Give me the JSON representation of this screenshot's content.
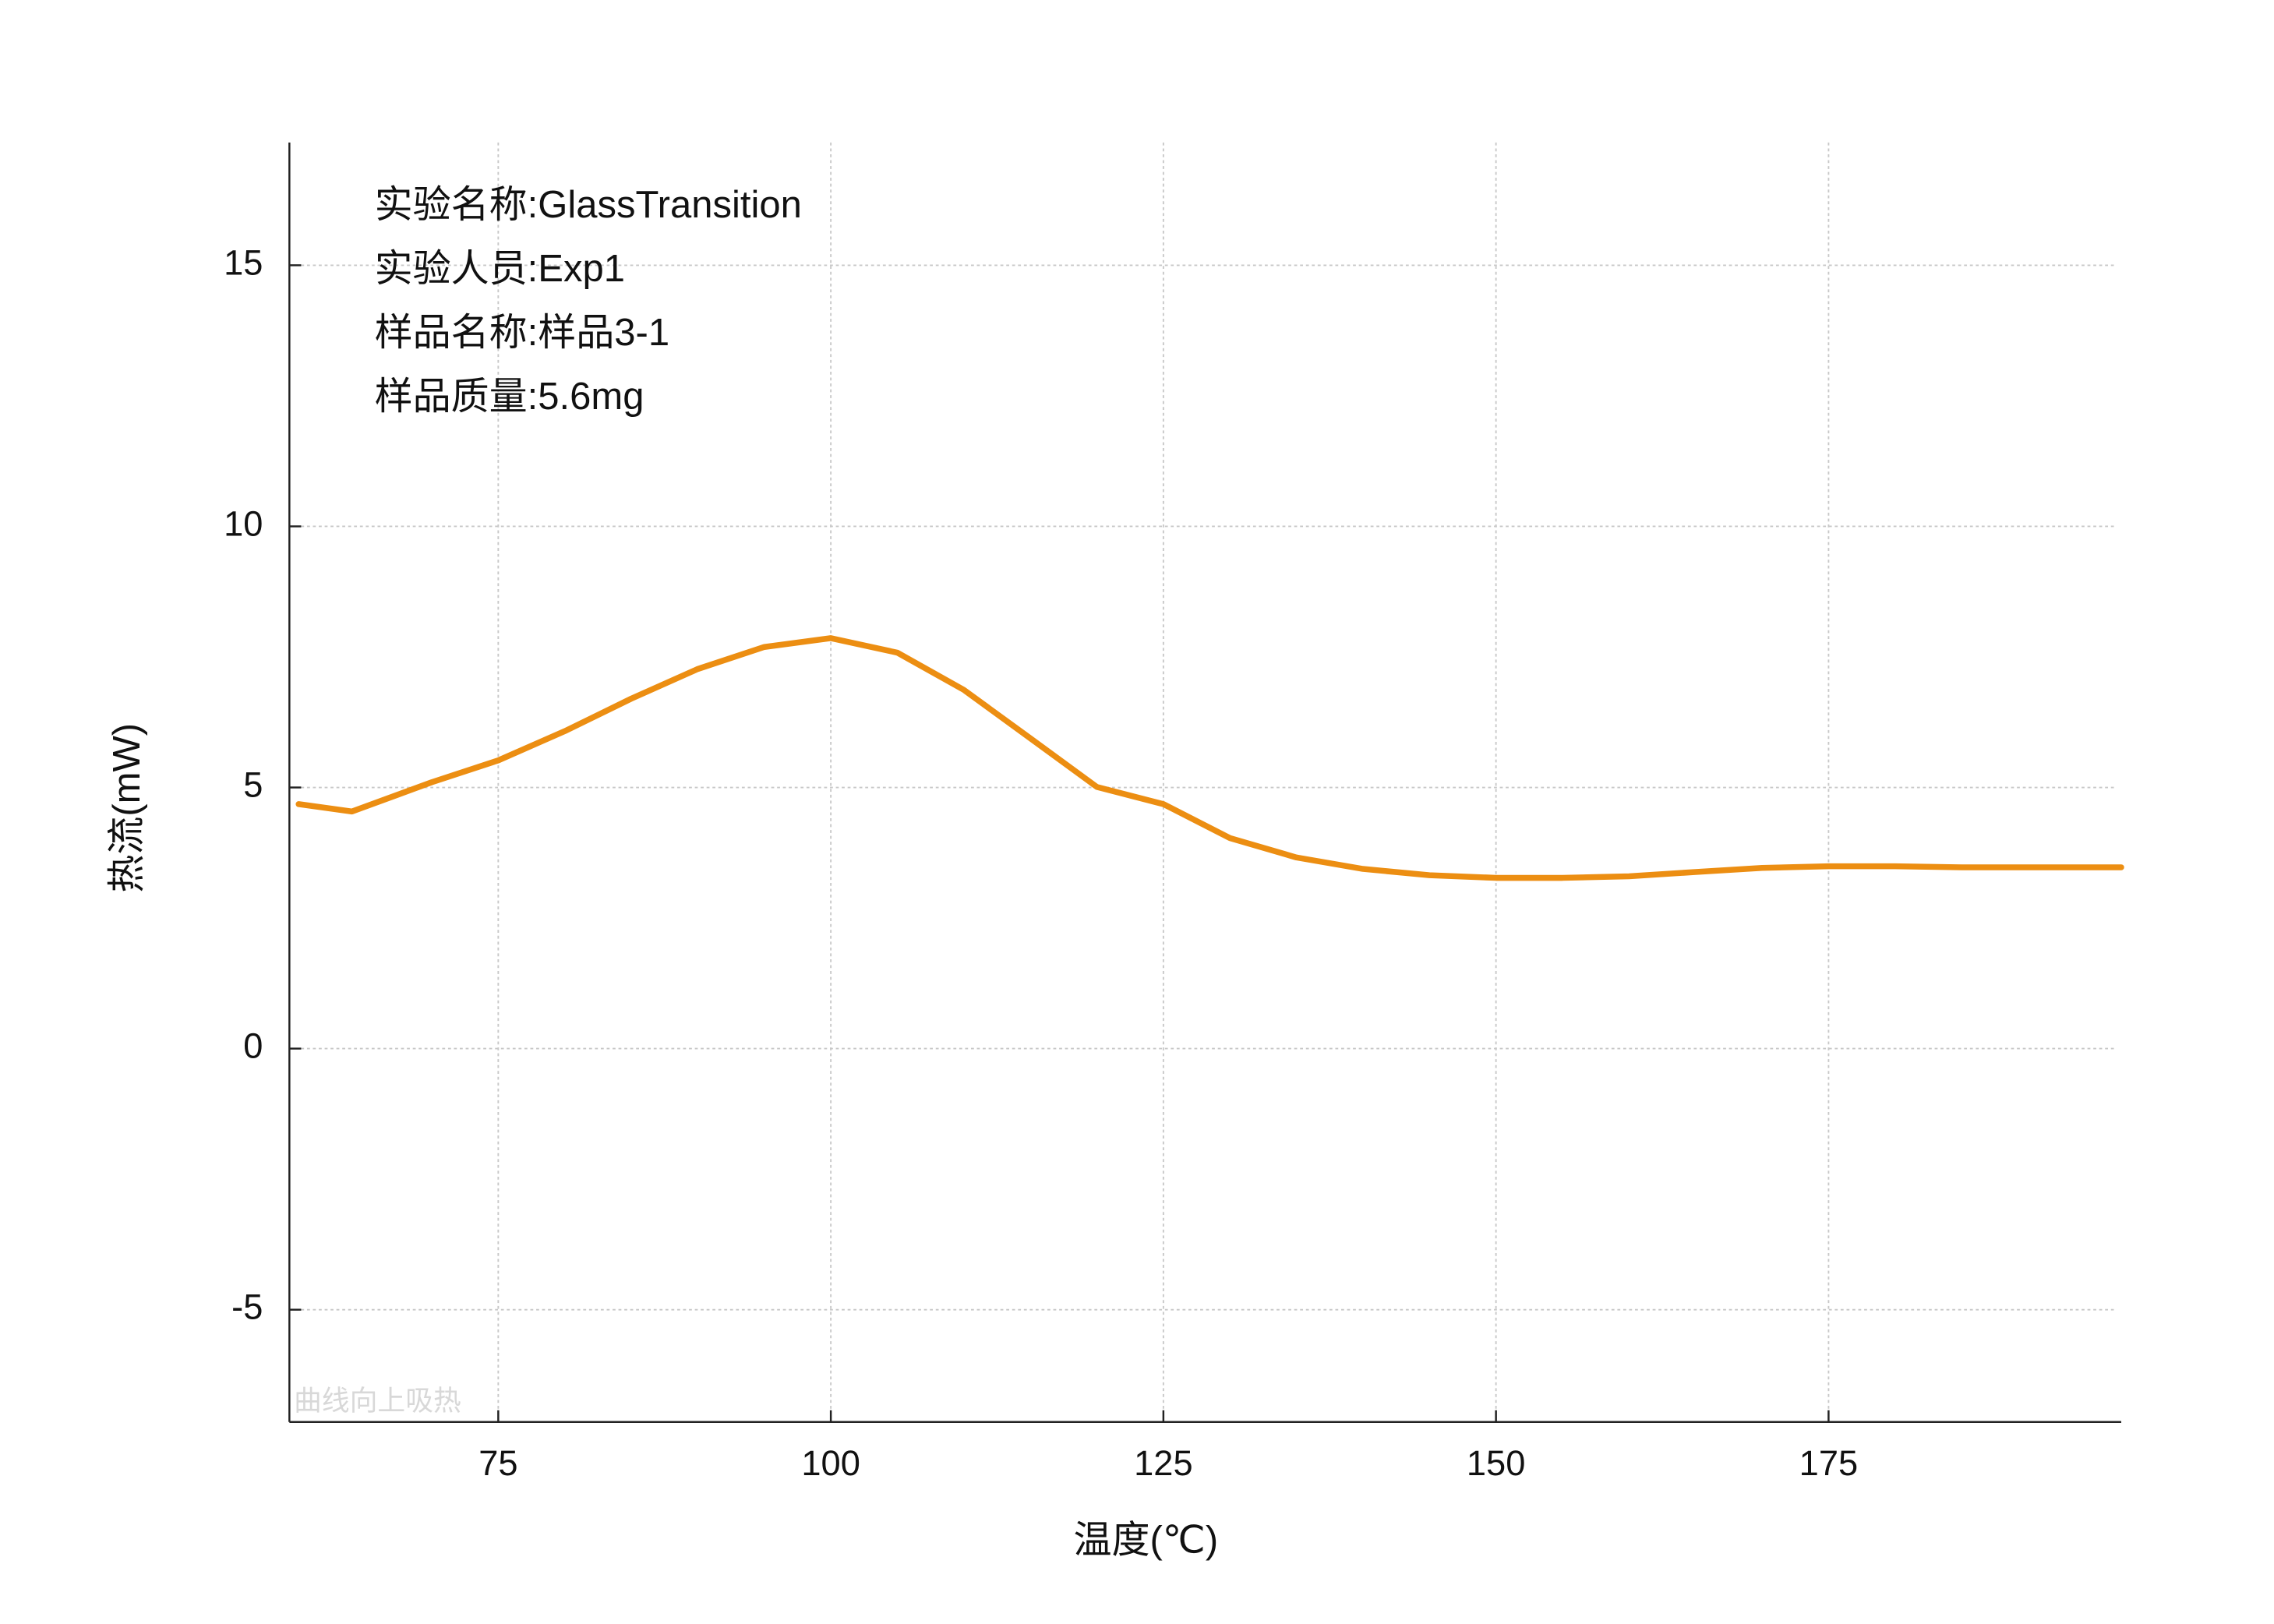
{
  "chart_data": {
    "type": "line",
    "xlabel": "温度(℃)",
    "ylabel": "热流(mW)",
    "annotations": [
      "实验名称:GlassTransition",
      "实验人员:Exp1",
      "样品名称:样品3-1",
      "样品质量:5.6mg"
    ],
    "note": "曲线向上吸热",
    "x": [
      60,
      64,
      70,
      75,
      80,
      85,
      90,
      95,
      100,
      105,
      110,
      115,
      120,
      125,
      130,
      135,
      140,
      145,
      150,
      155,
      160,
      165,
      170,
      175,
      180,
      185,
      190,
      197
    ],
    "series": [
      {
        "color": "#ec8e12",
        "values": [
          4.68,
          4.54,
          5.1,
          5.52,
          6.08,
          6.7,
          7.27,
          7.69,
          7.86,
          7.58,
          6.87,
          5.94,
          5.01,
          4.68,
          4.03,
          3.66,
          3.44,
          3.32,
          3.27,
          3.27,
          3.3,
          3.38,
          3.46,
          3.49,
          3.49,
          3.47,
          3.47,
          3.47
        ]
      }
    ],
    "xlim": [
      59.3,
      197
    ],
    "ylim": [
      -7.15,
      17.35
    ],
    "xticks": [
      75,
      100,
      125,
      150,
      175
    ],
    "yticks": [
      -5,
      0,
      5,
      10,
      15
    ],
    "grid": true
  }
}
